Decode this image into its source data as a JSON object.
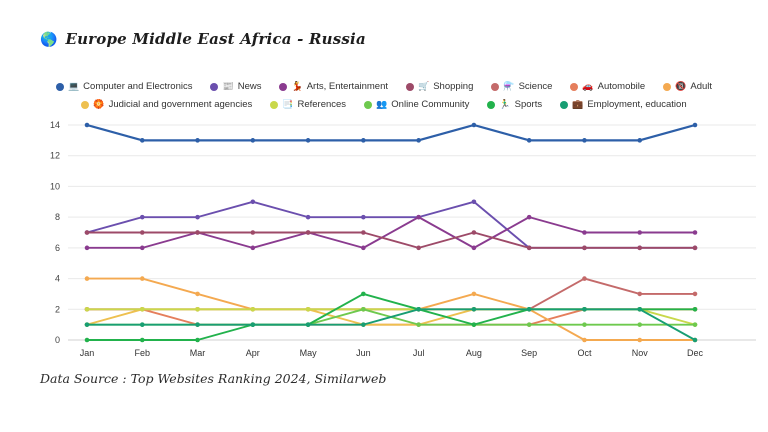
{
  "header": {
    "title": "Europe Middle East Africa - Russia",
    "title_icon": "🌎"
  },
  "footer": {
    "source_note": "Data Source : Top Websites Ranking 2024, Similarweb"
  },
  "chart_data": {
    "type": "line",
    "title": "Europe Middle East Africa - Russia",
    "x": [
      "Jan",
      "Feb",
      "Mar",
      "Apr",
      "May",
      "Jun",
      "Jul",
      "Aug",
      "Sep",
      "Oct",
      "Nov",
      "Dec"
    ],
    "xlabel": "",
    "ylabel": "",
    "ylim": [
      0,
      14
    ],
    "yticks": [
      0,
      2,
      4,
      6,
      8,
      10,
      12,
      14
    ],
    "grid": true,
    "legend_position": "top",
    "legend_rows": [
      [
        0,
        1,
        2,
        3,
        4,
        5,
        6
      ],
      [
        7,
        8,
        9,
        10,
        11
      ]
    ],
    "series": [
      {
        "name": "Computer and Electronics",
        "icon": "💻",
        "color": "#2d5fa8",
        "values": [
          14,
          13,
          13,
          13,
          13,
          13,
          13,
          14,
          13,
          13,
          13,
          14
        ]
      },
      {
        "name": "News",
        "icon": "📰",
        "color": "#6b4fae",
        "values": [
          7,
          8,
          8,
          9,
          8,
          8,
          8,
          9,
          6,
          6,
          6,
          6
        ]
      },
      {
        "name": "Arts, Entertainment",
        "icon": "💃",
        "color": "#8a3b8f",
        "values": [
          6,
          6,
          7,
          6,
          7,
          6,
          8,
          6,
          8,
          7,
          7,
          7
        ]
      },
      {
        "name": "Shopping",
        "icon": "🛒",
        "color": "#9d4a68",
        "values": [
          7,
          7,
          7,
          7,
          7,
          7,
          6,
          7,
          6,
          6,
          6,
          6
        ]
      },
      {
        "name": "Science",
        "icon": "⚗️",
        "color": "#c46a6a",
        "values": [
          2,
          2,
          2,
          2,
          2,
          2,
          2,
          2,
          2,
          4,
          3,
          3
        ]
      },
      {
        "name": "Automobile",
        "icon": "🚗",
        "color": "#e57e5c",
        "values": [
          2,
          2,
          1,
          1,
          1,
          1,
          1,
          1,
          1,
          2,
          2,
          2
        ]
      },
      {
        "name": "Adult",
        "icon": "🔞",
        "color": "#f4a950",
        "values": [
          4,
          4,
          3,
          2,
          2,
          2,
          2,
          3,
          2,
          0,
          0,
          0
        ]
      },
      {
        "name": "Judicial and government agencies",
        "icon": "🏵️",
        "color": "#eec04f",
        "values": [
          1,
          2,
          2,
          2,
          2,
          1,
          1,
          2,
          2,
          2,
          2,
          2
        ]
      },
      {
        "name": "References",
        "icon": "📑",
        "color": "#c9d84b",
        "values": [
          2,
          2,
          2,
          2,
          2,
          2,
          2,
          2,
          2,
          2,
          2,
          1
        ]
      },
      {
        "name": "Online Community",
        "icon": "👥",
        "color": "#6ec94e",
        "values": [
          1,
          1,
          1,
          1,
          1,
          2,
          1,
          1,
          1,
          1,
          1,
          1
        ]
      },
      {
        "name": "Sports",
        "icon": "🏃‍♂️",
        "color": "#22b24c",
        "values": [
          0,
          0,
          0,
          1,
          1,
          3,
          2,
          1,
          2,
          2,
          2,
          2
        ]
      },
      {
        "name": "Employment, education",
        "icon": "💼",
        "color": "#189e73",
        "values": [
          1,
          1,
          1,
          1,
          1,
          1,
          2,
          2,
          2,
          2,
          2,
          0
        ]
      }
    ]
  }
}
